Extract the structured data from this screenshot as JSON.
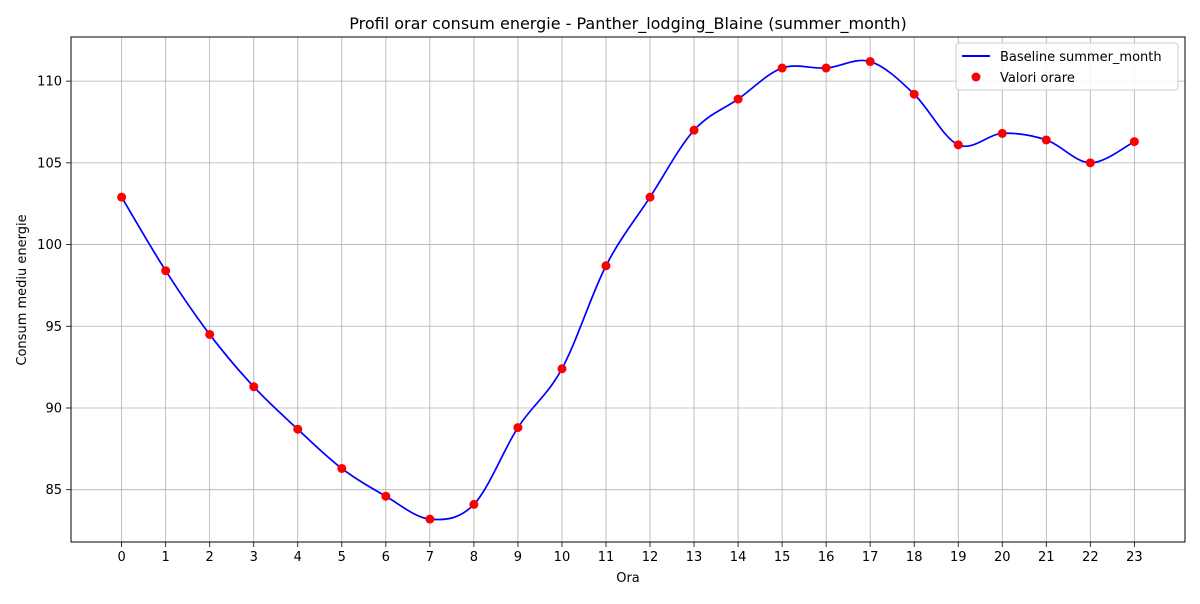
{
  "chart_data": {
    "type": "line",
    "title": "Profil orar consum energie - Panther_lodging_Blaine (summer_month)",
    "xlabel": "Ora",
    "ylabel": "Consum mediu energie",
    "x": [
      0,
      1,
      2,
      3,
      4,
      5,
      6,
      7,
      8,
      9,
      10,
      11,
      12,
      13,
      14,
      15,
      16,
      17,
      18,
      19,
      20,
      21,
      22,
      23
    ],
    "x_ticks": [
      "0",
      "1",
      "2",
      "3",
      "4",
      "5",
      "6",
      "7",
      "8",
      "9",
      "10",
      "11",
      "12",
      "13",
      "14",
      "15",
      "16",
      "17",
      "18",
      "19",
      "20",
      "21",
      "22",
      "23"
    ],
    "y_ticks": [
      85,
      90,
      95,
      100,
      105,
      110
    ],
    "xlim": [
      -1.15,
      24.15
    ],
    "ylim": [
      81.8,
      112.7
    ],
    "grid": true,
    "legend_position": "top-right",
    "series": [
      {
        "name": "Baseline summer_month",
        "kind": "line",
        "color": "#0000ff",
        "values": [
          102.9,
          98.4,
          94.5,
          91.3,
          88.7,
          86.3,
          84.6,
          83.2,
          84.1,
          88.8,
          92.4,
          98.7,
          102.9,
          107.0,
          108.9,
          110.8,
          110.8,
          111.2,
          109.2,
          106.1,
          106.8,
          106.4,
          105.0,
          106.3
        ]
      },
      {
        "name": "Valori orare",
        "kind": "scatter",
        "color": "#ff0000",
        "values": [
          102.9,
          98.4,
          94.5,
          91.3,
          88.7,
          86.3,
          84.6,
          83.2,
          84.1,
          88.8,
          92.4,
          98.7,
          102.9,
          107.0,
          108.9,
          110.8,
          110.8,
          111.2,
          109.2,
          106.1,
          106.8,
          106.4,
          105.0,
          106.3
        ]
      }
    ]
  }
}
